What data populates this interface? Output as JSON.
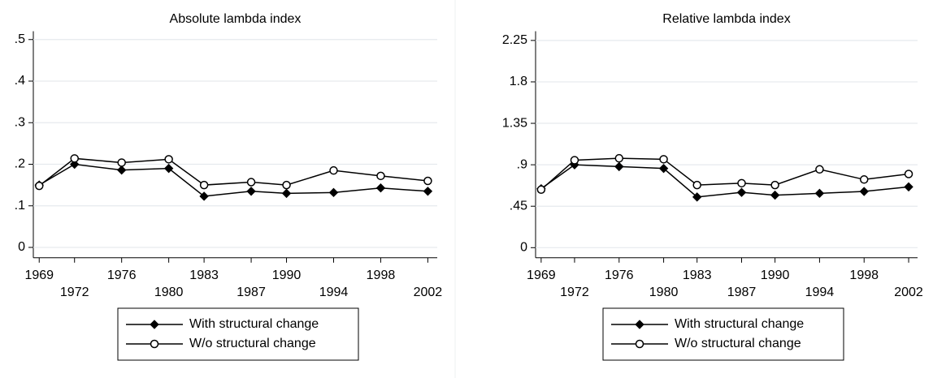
{
  "chart_data": [
    {
      "type": "line",
      "title": "Absolute lambda index",
      "x": [
        1969,
        1972,
        1976,
        1980,
        1983,
        1987,
        1990,
        1994,
        1998,
        2002
      ],
      "xlim": [
        1968.5,
        2002.8
      ],
      "xticks": [
        1969,
        1972,
        1976,
        1980,
        1983,
        1987,
        1990,
        1994,
        1998,
        2002
      ],
      "ylim": [
        -0.025,
        0.52
      ],
      "yticks": [
        0,
        {
          "value": 0.1,
          "label": ".1"
        },
        {
          "value": 0.2,
          "label": ".2"
        },
        {
          "value": 0.3,
          "label": ".3"
        },
        {
          "value": 0.4,
          "label": ".4"
        },
        {
          "value": 0.5,
          "label": ".5"
        }
      ],
      "grid": true,
      "legend": "bottom",
      "series": [
        {
          "name": "With structural change",
          "color": "#000000",
          "marker": "diamond",
          "values": [
            0.15,
            0.2,
            0.186,
            0.19,
            0.123,
            0.135,
            0.13,
            0.132,
            0.143,
            0.135
          ]
        },
        {
          "name": "W/o structural change",
          "color": "#000000",
          "marker": "circle",
          "values": [
            0.148,
            0.214,
            0.204,
            0.212,
            0.15,
            0.157,
            0.15,
            0.185,
            0.172,
            0.16
          ]
        }
      ]
    },
    {
      "type": "line",
      "title": "Relative lambda index",
      "x": [
        1969,
        1972,
        1976,
        1980,
        1983,
        1987,
        1990,
        1994,
        1998,
        2002
      ],
      "xlim": [
        1968.5,
        2002.8
      ],
      "xticks": [
        1969,
        1972,
        1976,
        1980,
        1983,
        1987,
        1990,
        1994,
        1998,
        2002
      ],
      "ylim": [
        -0.11,
        2.35
      ],
      "yticks": [
        0,
        {
          "value": 0.45,
          "label": ".45"
        },
        {
          "value": 0.9,
          "label": ".9"
        },
        1.35,
        1.8,
        2.25
      ],
      "grid": true,
      "legend": "bottom",
      "series": [
        {
          "name": "With structural change",
          "color": "#000000",
          "marker": "diamond",
          "values": [
            0.64,
            0.9,
            0.88,
            0.86,
            0.55,
            0.6,
            0.57,
            0.59,
            0.61,
            0.66
          ]
        },
        {
          "name": "W/o structural change",
          "color": "#000000",
          "marker": "circle",
          "values": [
            0.63,
            0.95,
            0.97,
            0.96,
            0.68,
            0.7,
            0.68,
            0.85,
            0.74,
            0.8
          ]
        }
      ]
    }
  ]
}
